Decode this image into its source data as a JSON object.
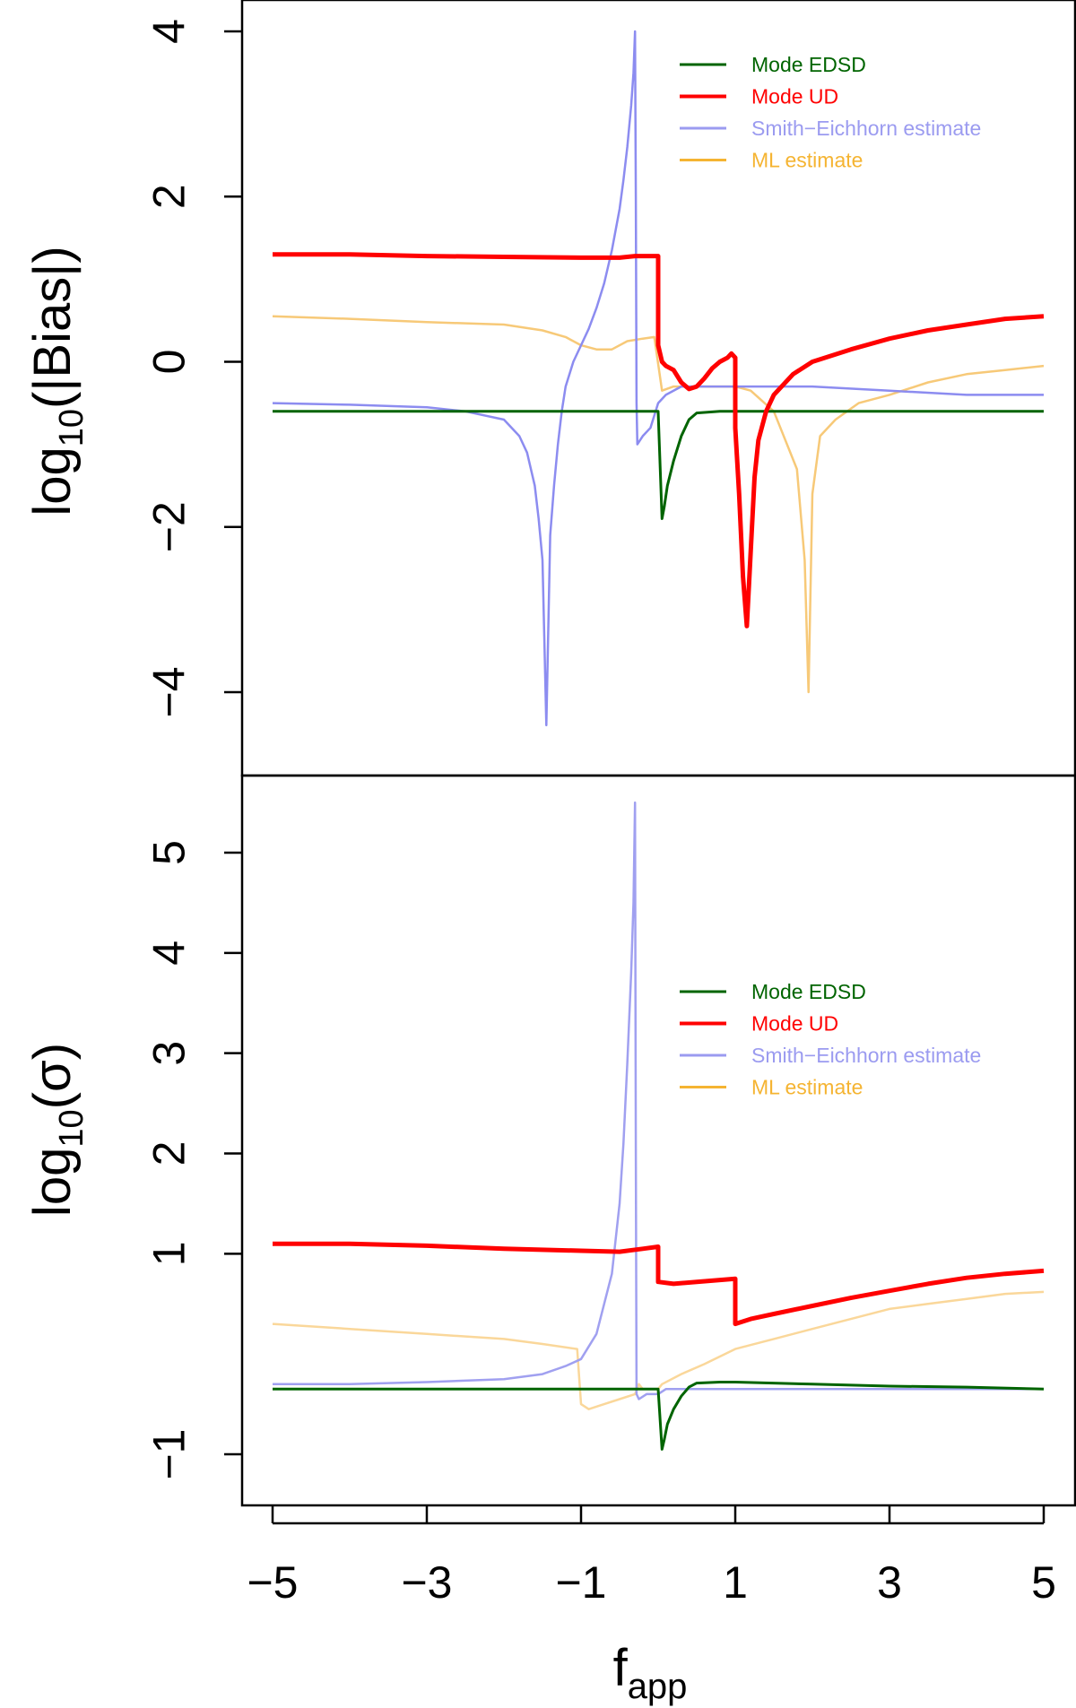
{
  "chart_data": [
    {
      "type": "line",
      "panel": "top",
      "ylabel_main": "log",
      "ylabel_sub": "10",
      "ylabel_rest": "(|Bias|)",
      "xlim": [
        -5,
        5
      ],
      "ylim": [
        -4.6,
        4.3
      ],
      "yticks": [
        4,
        2,
        0,
        -2,
        -4
      ],
      "ytick_labels": [
        "4",
        "2",
        "0",
        "−2",
        "−4"
      ],
      "legend": {
        "placement": "top-right",
        "entries": [
          {
            "label": "Mode EDSD",
            "color": "#006400"
          },
          {
            "label": "Mode UD",
            "color": "#ff0000"
          },
          {
            "label": "Smith−Eichhorn estimate",
            "color": "#9b9bf0"
          },
          {
            "label": "ML estimate",
            "color": "#f5b432"
          }
        ]
      },
      "series": [
        {
          "name": "ML estimate",
          "color": "#f7c978",
          "x": [
            -5,
            -4,
            -3,
            -2,
            -1.5,
            -1.2,
            -1.0,
            -0.8,
            -0.6,
            -0.4,
            -0.2,
            -0.05,
            0.05,
            0.2,
            0.3,
            0.5,
            0.8,
            1.0,
            1.2,
            1.5,
            1.8,
            1.9,
            1.95,
            2.0,
            2.1,
            2.3,
            2.6,
            3.0,
            3.5,
            4.0,
            4.5,
            5.0
          ],
          "y": [
            0.55,
            0.52,
            0.48,
            0.45,
            0.38,
            0.3,
            0.2,
            0.15,
            0.15,
            0.25,
            0.28,
            0.3,
            -0.35,
            -0.3,
            -0.3,
            -0.3,
            -0.3,
            -0.3,
            -0.35,
            -0.6,
            -1.3,
            -2.4,
            -4.0,
            -1.6,
            -0.9,
            -0.7,
            -0.5,
            -0.4,
            -0.25,
            -0.15,
            -0.1,
            -0.05
          ]
        },
        {
          "name": "Smith−Eichhorn estimate",
          "color": "#8c8cf0",
          "x": [
            -5,
            -4,
            -3,
            -2.5,
            -2.0,
            -1.8,
            -1.7,
            -1.6,
            -1.55,
            -1.5,
            -1.45,
            -1.4,
            -1.35,
            -1.3,
            -1.25,
            -1.2,
            -1.1,
            -1.0,
            -0.9,
            -0.8,
            -0.7,
            -0.6,
            -0.5,
            -0.45,
            -0.4,
            -0.35,
            -0.32,
            -0.3,
            -0.29,
            -0.28,
            -0.27,
            -0.2,
            -0.1,
            0.0,
            0.05,
            0.1,
            0.3,
            0.5,
            1.0,
            1.5,
            2.0,
            3.0,
            4.0,
            5.0
          ],
          "y": [
            -0.5,
            -0.52,
            -0.55,
            -0.6,
            -0.7,
            -0.9,
            -1.1,
            -1.5,
            -1.9,
            -2.4,
            -4.4,
            -2.1,
            -1.5,
            -1.0,
            -0.6,
            -0.3,
            0.0,
            0.2,
            0.4,
            0.65,
            0.95,
            1.35,
            1.85,
            2.2,
            2.6,
            3.1,
            3.5,
            4.0,
            2.0,
            -0.5,
            -1.0,
            -0.9,
            -0.8,
            -0.5,
            -0.45,
            -0.4,
            -0.3,
            -0.3,
            -0.3,
            -0.3,
            -0.3,
            -0.35,
            -0.4,
            -0.4
          ]
        },
        {
          "name": "Mode EDSD",
          "color": "#006400",
          "x": [
            -5,
            -4,
            -3,
            -2,
            -1,
            -0.5,
            0.0,
            0.05,
            0.08,
            0.12,
            0.2,
            0.3,
            0.4,
            0.5,
            0.8,
            1.0,
            2.0,
            3.0,
            4.0,
            5.0
          ],
          "y": [
            -0.6,
            -0.6,
            -0.6,
            -0.6,
            -0.6,
            -0.6,
            -0.6,
            -1.9,
            -1.75,
            -1.5,
            -1.2,
            -0.9,
            -0.7,
            -0.62,
            -0.6,
            -0.6,
            -0.6,
            -0.6,
            -0.6,
            -0.6
          ]
        },
        {
          "name": "Mode UD",
          "color": "#ff0000",
          "x": [
            -5,
            -4,
            -3,
            -2,
            -1,
            -0.5,
            -0.3,
            -0.2,
            -0.1,
            0.0,
            0.0,
            0.05,
            0.1,
            0.2,
            0.3,
            0.4,
            0.5,
            0.6,
            0.7,
            0.8,
            0.9,
            0.95,
            1.0,
            1.0,
            1.05,
            1.1,
            1.15,
            1.2,
            1.25,
            1.3,
            1.4,
            1.5,
            1.75,
            2.0,
            2.5,
            3.0,
            3.5,
            4.0,
            4.5,
            5.0
          ],
          "y": [
            1.3,
            1.3,
            1.28,
            1.27,
            1.26,
            1.26,
            1.28,
            1.28,
            1.28,
            1.28,
            0.2,
            0.0,
            -0.05,
            -0.1,
            -0.25,
            -0.33,
            -0.3,
            -0.2,
            -0.08,
            0.0,
            0.05,
            0.1,
            0.05,
            -0.8,
            -1.6,
            -2.6,
            -3.2,
            -2.3,
            -1.4,
            -0.95,
            -0.6,
            -0.4,
            -0.15,
            0.0,
            0.15,
            0.28,
            0.38,
            0.45,
            0.52,
            0.55
          ]
        }
      ]
    },
    {
      "type": "line",
      "panel": "bottom",
      "ylabel_main": "log",
      "ylabel_sub": "10",
      "ylabel_rest": "(σ)",
      "xlabel_main": "f",
      "xlabel_sub": "app",
      "xlim": [
        -5,
        5
      ],
      "xticks": [
        -5,
        -3,
        -1,
        1,
        3,
        5
      ],
      "xtick_labels": [
        "−5",
        "−3",
        "−1",
        "1",
        "3",
        "5"
      ],
      "ylim": [
        -1.3,
        5.5
      ],
      "yticks": [
        5,
        4,
        3,
        2,
        1,
        -1
      ],
      "ytick_labels": [
        "5",
        "4",
        "3",
        "2",
        "1",
        "−1"
      ],
      "legend": {
        "placement": "right",
        "entries": [
          {
            "label": "Mode EDSD",
            "color": "#006400"
          },
          {
            "label": "Mode UD",
            "color": "#ff0000"
          },
          {
            "label": "Smith−Eichhorn estimate",
            "color": "#9b9bf0"
          },
          {
            "label": "ML estimate",
            "color": "#f5b432"
          }
        ]
      },
      "series": [
        {
          "name": "ML estimate",
          "color": "#fad79a",
          "x": [
            -5,
            -4,
            -3,
            -2,
            -1.5,
            -1.05,
            -1.0,
            -0.9,
            -0.7,
            -0.5,
            -0.3,
            -0.25,
            -0.2,
            -0.1,
            0.0,
            0.05,
            0.3,
            0.6,
            1.0,
            1.5,
            2.0,
            2.5,
            3.0,
            3.5,
            4.0,
            4.5,
            5.0
          ],
          "y": [
            0.3,
            0.25,
            0.2,
            0.15,
            0.1,
            0.05,
            -0.5,
            -0.55,
            -0.5,
            -0.45,
            -0.4,
            -0.3,
            -0.35,
            -0.35,
            -0.35,
            -0.3,
            -0.2,
            -0.1,
            0.05,
            0.15,
            0.25,
            0.35,
            0.45,
            0.5,
            0.55,
            0.6,
            0.62
          ]
        },
        {
          "name": "Smith−Eichhorn estimate",
          "color": "#a0a0f0",
          "x": [
            -5,
            -4,
            -3,
            -2,
            -1.5,
            -1.2,
            -1.0,
            -0.8,
            -0.6,
            -0.5,
            -0.45,
            -0.4,
            -0.35,
            -0.32,
            -0.3,
            -0.29,
            -0.28,
            -0.25,
            -0.15,
            0.0,
            0.1,
            0.5,
            1.0,
            2.0,
            3.0,
            4.0,
            5.0
          ],
          "y": [
            -0.3,
            -0.3,
            -0.28,
            -0.25,
            -0.2,
            -0.12,
            -0.05,
            0.2,
            0.8,
            1.5,
            2.1,
            2.9,
            3.8,
            4.5,
            5.5,
            2.0,
            -0.4,
            -0.45,
            -0.4,
            -0.4,
            -0.35,
            -0.35,
            -0.35,
            -0.35,
            -0.35,
            -0.35,
            -0.35
          ]
        },
        {
          "name": "Mode EDSD",
          "color": "#006400",
          "x": [
            -5,
            -4,
            -3,
            -2,
            -1,
            -0.5,
            0.0,
            0.05,
            0.08,
            0.12,
            0.2,
            0.3,
            0.4,
            0.5,
            0.8,
            1.0,
            2.0,
            3.0,
            4.0,
            5.0
          ],
          "y": [
            -0.35,
            -0.35,
            -0.35,
            -0.35,
            -0.35,
            -0.35,
            -0.35,
            -0.95,
            -0.85,
            -0.7,
            -0.55,
            -0.42,
            -0.33,
            -0.29,
            -0.28,
            -0.28,
            -0.3,
            -0.32,
            -0.33,
            -0.35
          ]
        },
        {
          "name": "Mode UD",
          "color": "#ff0000",
          "x": [
            -5,
            -4,
            -3,
            -2,
            -1,
            -0.5,
            -0.2,
            0.0,
            0.0,
            0.2,
            0.5,
            1.0,
            1.0,
            1.2,
            1.5,
            2.0,
            2.5,
            3.0,
            3.5,
            4.0,
            4.5,
            5.0
          ],
          "y": [
            1.1,
            1.1,
            1.08,
            1.05,
            1.03,
            1.02,
            1.05,
            1.07,
            0.72,
            0.7,
            0.72,
            0.75,
            0.3,
            0.35,
            0.4,
            0.48,
            0.56,
            0.63,
            0.7,
            0.76,
            0.8,
            0.83
          ]
        }
      ]
    }
  ]
}
